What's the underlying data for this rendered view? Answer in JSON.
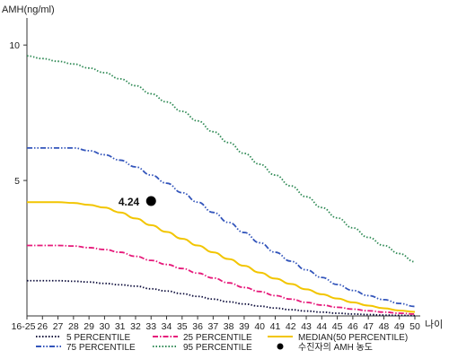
{
  "chart_data": {
    "type": "line",
    "title": "",
    "ylabel": "AMH(ng/ml)",
    "xlabel": "나이",
    "ylim": [
      0,
      11
    ],
    "yticks": [
      5,
      10
    ],
    "categories": [
      "16-25",
      "26",
      "27",
      "28",
      "29",
      "30",
      "31",
      "32",
      "33",
      "34",
      "35",
      "36",
      "37",
      "38",
      "39",
      "40",
      "41",
      "42",
      "43",
      "44",
      "45",
      "46",
      "47",
      "48",
      "49",
      "50"
    ],
    "grid": false,
    "legend_position": "bottom",
    "series": [
      {
        "name": "5 PERCENTILE",
        "color": "#0b0b3a",
        "style": "dotted",
        "values": [
          1.3,
          1.3,
          1.3,
          1.28,
          1.25,
          1.2,
          1.15,
          1.1,
          1.0,
          0.92,
          0.82,
          0.72,
          0.62,
          0.52,
          0.44,
          0.36,
          0.29,
          0.23,
          0.18,
          0.14,
          0.1,
          0.07,
          0.05,
          0.03,
          0.02,
          0.01
        ]
      },
      {
        "name": "25 PERCENTILE",
        "color": "#e6197a",
        "style": "dashdot",
        "values": [
          2.6,
          2.6,
          2.6,
          2.58,
          2.52,
          2.45,
          2.35,
          2.2,
          2.05,
          1.9,
          1.75,
          1.58,
          1.4,
          1.22,
          1.05,
          0.9,
          0.75,
          0.62,
          0.5,
          0.4,
          0.32,
          0.25,
          0.19,
          0.14,
          0.1,
          0.07
        ]
      },
      {
        "name": "MEDIAN(50 PERCENTILE)",
        "color": "#f2c500",
        "style": "solid",
        "values": [
          4.2,
          4.2,
          4.2,
          4.17,
          4.1,
          4.0,
          3.82,
          3.6,
          3.35,
          3.1,
          2.85,
          2.6,
          2.35,
          2.1,
          1.85,
          1.6,
          1.38,
          1.18,
          0.98,
          0.8,
          0.64,
          0.5,
          0.38,
          0.28,
          0.2,
          0.15
        ]
      },
      {
        "name": "75 PERCENTILE",
        "color": "#3355bb",
        "style": "dashdotdot",
        "values": [
          6.2,
          6.2,
          6.2,
          6.2,
          6.1,
          5.95,
          5.75,
          5.5,
          5.2,
          4.9,
          4.55,
          4.2,
          3.82,
          3.45,
          3.08,
          2.7,
          2.35,
          2.02,
          1.7,
          1.42,
          1.16,
          0.94,
          0.75,
          0.6,
          0.46,
          0.35
        ]
      },
      {
        "name": "95 PERCENTILE",
        "color": "#2f8a55",
        "style": "dotted",
        "values": [
          9.6,
          9.5,
          9.4,
          9.3,
          9.15,
          8.98,
          8.75,
          8.5,
          8.2,
          7.9,
          7.55,
          7.2,
          6.8,
          6.4,
          6.0,
          5.6,
          5.2,
          4.8,
          4.4,
          4.0,
          3.62,
          3.25,
          2.9,
          2.6,
          2.3,
          2.0
        ]
      }
    ],
    "point": {
      "name": "수진자의 AMH 농도",
      "label": "4.24",
      "x": "33",
      "y": 4.24,
      "color": "#000000"
    }
  }
}
